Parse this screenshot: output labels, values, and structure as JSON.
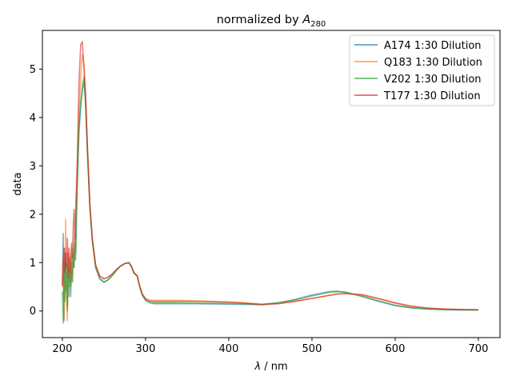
{
  "chart_data": {
    "type": "line",
    "title": "normalized by A280",
    "title_main": "normalized by ",
    "title_var": "A",
    "title_sub": "280",
    "xlabel": "λ / nm",
    "xlabel_var": "λ",
    "xlabel_rest": " / nm",
    "ylabel": "data",
    "xlim": [
      176,
      726
    ],
    "ylim": [
      -0.55,
      5.8
    ],
    "xticks": [
      200,
      300,
      400,
      500,
      600,
      700
    ],
    "yticks": [
      0,
      1,
      2,
      3,
      4,
      5
    ],
    "grid": false,
    "legend_position": "top-right",
    "series": [
      {
        "name": "A174 1:30 Dilution",
        "color": "#1f77b4",
        "x": [
          200,
          201,
          202,
          203,
          204,
          205,
          206,
          207,
          208,
          209,
          210,
          211,
          212,
          213,
          214,
          215,
          216,
          217,
          218,
          219,
          220,
          222,
          224,
          226,
          228,
          230,
          233,
          236,
          240,
          245,
          250,
          255,
          260,
          265,
          270,
          275,
          280,
          283,
          286,
          290,
          293,
          296,
          300,
          305,
          310,
          320,
          340,
          360,
          380,
          400,
          420,
          440,
          460,
          480,
          500,
          520,
          530,
          540,
          560,
          580,
          600,
          620,
          640,
          660,
          680,
          700
        ],
        "y": [
          0.5,
          1.6,
          -0.2,
          1.3,
          0.4,
          1.0,
          0.1,
          1.2,
          0.6,
          0.9,
          0.3,
          1.0,
          0.7,
          1.3,
          0.9,
          1.6,
          1.2,
          2.0,
          2.7,
          3.2,
          3.7,
          4.2,
          4.55,
          4.75,
          4.3,
          3.4,
          2.2,
          1.45,
          0.9,
          0.67,
          0.6,
          0.65,
          0.74,
          0.84,
          0.93,
          0.98,
          1.0,
          0.92,
          0.78,
          0.72,
          0.5,
          0.33,
          0.22,
          0.17,
          0.15,
          0.15,
          0.15,
          0.15,
          0.145,
          0.14,
          0.135,
          0.13,
          0.17,
          0.24,
          0.33,
          0.4,
          0.41,
          0.39,
          0.3,
          0.2,
          0.11,
          0.06,
          0.035,
          0.025,
          0.02,
          0.02
        ]
      },
      {
        "name": "Q183 1:30 Dilution",
        "color": "#ff7f0e",
        "x": [
          200,
          201,
          202,
          203,
          204,
          205,
          206,
          207,
          208,
          209,
          210,
          211,
          212,
          213,
          214,
          215,
          216,
          217,
          218,
          219,
          220,
          222,
          224,
          226,
          228,
          230,
          233,
          236,
          240,
          245,
          250,
          255,
          260,
          265,
          270,
          275,
          280,
          283,
          286,
          290,
          293,
          296,
          300,
          305,
          310,
          320,
          340,
          360,
          380,
          400,
          420,
          440,
          460,
          480,
          500,
          520,
          530,
          540,
          560,
          580,
          600,
          620,
          640,
          660,
          680,
          700
        ],
        "y": [
          0.5,
          1.1,
          -0.15,
          0.6,
          1.9,
          0.3,
          -0.2,
          1.2,
          0.5,
          0.9,
          0.7,
          1.3,
          0.6,
          1.0,
          1.5,
          1.1,
          1.8,
          2.3,
          2.9,
          3.5,
          4.1,
          4.8,
          5.3,
          5.1,
          4.5,
          3.5,
          2.25,
          1.5,
          0.95,
          0.72,
          0.67,
          0.7,
          0.76,
          0.85,
          0.93,
          0.98,
          1.0,
          0.92,
          0.8,
          0.72,
          0.52,
          0.36,
          0.26,
          0.22,
          0.22,
          0.22,
          0.22,
          0.21,
          0.2,
          0.19,
          0.17,
          0.14,
          0.16,
          0.2,
          0.26,
          0.32,
          0.35,
          0.36,
          0.33,
          0.25,
          0.16,
          0.09,
          0.055,
          0.04,
          0.03,
          0.025
        ]
      },
      {
        "name": "V202 1:30 Dilution",
        "color": "#2ca02c",
        "x": [
          200,
          201,
          202,
          203,
          204,
          205,
          206,
          207,
          208,
          209,
          210,
          211,
          212,
          213,
          214,
          215,
          216,
          217,
          218,
          219,
          220,
          222,
          224,
          226,
          228,
          230,
          233,
          236,
          240,
          245,
          250,
          255,
          260,
          265,
          270,
          275,
          280,
          283,
          286,
          290,
          293,
          296,
          300,
          305,
          310,
          320,
          340,
          360,
          380,
          400,
          420,
          440,
          460,
          480,
          500,
          520,
          530,
          540,
          560,
          580,
          600,
          620,
          640,
          660,
          680,
          700
        ],
        "y": [
          0.4,
          -0.25,
          1.0,
          0.2,
          1.2,
          0.5,
          0.0,
          0.9,
          0.3,
          1.1,
          0.5,
          0.8,
          0.6,
          1.2,
          0.9,
          1.4,
          1.05,
          2.0,
          2.6,
          3.3,
          3.8,
          4.3,
          4.65,
          4.85,
          4.2,
          3.3,
          2.15,
          1.45,
          0.9,
          0.66,
          0.59,
          0.64,
          0.73,
          0.84,
          0.93,
          0.98,
          1.0,
          0.93,
          0.79,
          0.73,
          0.5,
          0.33,
          0.22,
          0.18,
          0.17,
          0.17,
          0.17,
          0.165,
          0.16,
          0.155,
          0.15,
          0.14,
          0.17,
          0.23,
          0.31,
          0.38,
          0.4,
          0.39,
          0.31,
          0.21,
          0.12,
          0.07,
          0.045,
          0.03,
          0.025,
          0.02
        ]
      },
      {
        "name": "T177 1:30 Dilution",
        "color": "#d62728",
        "x": [
          200,
          201,
          202,
          203,
          204,
          205,
          206,
          207,
          208,
          209,
          210,
          211,
          212,
          213,
          214,
          215,
          216,
          217,
          218,
          219,
          220,
          222,
          224,
          226,
          228,
          230,
          233,
          236,
          240,
          245,
          250,
          255,
          260,
          265,
          270,
          275,
          280,
          283,
          286,
          290,
          293,
          296,
          300,
          305,
          310,
          320,
          340,
          360,
          380,
          400,
          420,
          440,
          460,
          480,
          500,
          520,
          530,
          540,
          560,
          580,
          600,
          620,
          640,
          660,
          680,
          700
        ],
        "y": [
          0.55,
          1.0,
          1.3,
          0.8,
          1.2,
          0.9,
          1.5,
          0.7,
          1.3,
          1.0,
          0.8,
          1.4,
          1.1,
          1.7,
          2.1,
          1.5,
          2.1,
          2.6,
          3.2,
          4.0,
          4.7,
          5.5,
          5.57,
          5.0,
          4.4,
          3.4,
          2.2,
          1.5,
          0.95,
          0.72,
          0.66,
          0.7,
          0.77,
          0.86,
          0.93,
          0.98,
          1.0,
          0.92,
          0.79,
          0.72,
          0.5,
          0.35,
          0.25,
          0.21,
          0.2,
          0.2,
          0.2,
          0.2,
          0.19,
          0.18,
          0.16,
          0.13,
          0.15,
          0.2,
          0.26,
          0.32,
          0.35,
          0.36,
          0.34,
          0.26,
          0.17,
          0.1,
          0.06,
          0.04,
          0.03,
          0.025
        ]
      }
    ]
  }
}
